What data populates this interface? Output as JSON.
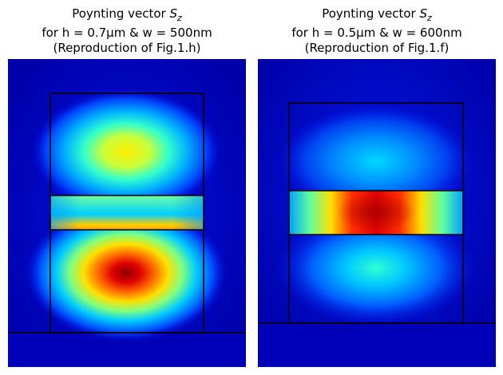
{
  "chart_data": [
    {
      "type": "heatmap",
      "title_prefix": "Poynting vector ",
      "title_symbol": "S",
      "title_subscript": "z",
      "title_line2": "for h = 0.7µm & w = 500nm",
      "title_line3": "(Reproduction of Fig.1.h)",
      "colormap": "jet",
      "axes_visible": false,
      "hotspots": [
        {
          "region": "upper rib",
          "intensity": 0.55
        },
        {
          "region": "slot",
          "intensity": 0.45
        },
        {
          "region": "lower rib",
          "intensity": 1.0
        }
      ]
    },
    {
      "type": "heatmap",
      "title_prefix": "Poynting vector ",
      "title_symbol": "S",
      "title_subscript": "z",
      "title_line2": "for h = 0.5µm & w = 600nm",
      "title_line3": "(Reproduction of Fig.1.f)",
      "colormap": "jet",
      "axes_visible": false,
      "hotspots": [
        {
          "region": "upper rib",
          "intensity": 0.35
        },
        {
          "region": "slot",
          "intensity": 1.0
        },
        {
          "region": "lower rib",
          "intensity": 0.45
        }
      ]
    }
  ],
  "colors": {
    "background_field": "#0000b4",
    "outline": "#000000",
    "jet_low": "#00007f",
    "jet_high": "#7f0000"
  }
}
